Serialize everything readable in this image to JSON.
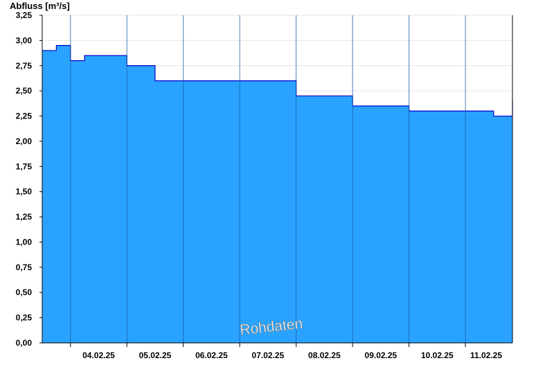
{
  "chart_data": {
    "type": "area",
    "ylabel": "Abfluss [m³/s]",
    "ylim": [
      0,
      3.25
    ],
    "y_ticks": [
      0,
      0.25,
      0.5,
      0.75,
      1.0,
      1.25,
      1.5,
      1.75,
      2.0,
      2.25,
      2.5,
      2.75,
      3.0,
      3.25
    ],
    "y_tick_labels": [
      "0,00",
      "0,25",
      "0,50",
      "0,75",
      "1,00",
      "1,25",
      "1,50",
      "1,75",
      "2,00",
      "2,25",
      "2,50",
      "2,75",
      "3,00",
      "3,25"
    ],
    "x_range": [
      "2025-02-03T12:00",
      "2025-02-11T20:00"
    ],
    "day_boundaries": [
      "2025-02-04T00:00",
      "2025-02-05T00:00",
      "2025-02-06T00:00",
      "2025-02-07T00:00",
      "2025-02-08T00:00",
      "2025-02-09T00:00",
      "2025-02-10T00:00",
      "2025-02-11T00:00"
    ],
    "x_tick_labels": [
      "04.02.25",
      "05.02.25",
      "06.02.25",
      "07.02.25",
      "08.02.25",
      "09.02.25",
      "10.02.25",
      "11.02.25"
    ],
    "grid": true,
    "series": [
      {
        "values": [
          {
            "x": "2025-02-03T12:00",
            "y": 2.9
          },
          {
            "x": "2025-02-03T18:00",
            "y": 2.95
          },
          {
            "x": "2025-02-04T00:00",
            "y": 2.8
          },
          {
            "x": "2025-02-04T06:00",
            "y": 2.85
          },
          {
            "x": "2025-02-04T12:00",
            "y": 2.85
          },
          {
            "x": "2025-02-04T18:00",
            "y": 2.85
          },
          {
            "x": "2025-02-05T00:00",
            "y": 2.75
          },
          {
            "x": "2025-02-05T06:00",
            "y": 2.75
          },
          {
            "x": "2025-02-05T12:00",
            "y": 2.6
          },
          {
            "x": "2025-02-05T18:00",
            "y": 2.6
          },
          {
            "x": "2025-02-06T00:00",
            "y": 2.6
          },
          {
            "x": "2025-02-06T06:00",
            "y": 2.6
          },
          {
            "x": "2025-02-06T12:00",
            "y": 2.6
          },
          {
            "x": "2025-02-06T18:00",
            "y": 2.6
          },
          {
            "x": "2025-02-07T00:00",
            "y": 2.6
          },
          {
            "x": "2025-02-07T06:00",
            "y": 2.6
          },
          {
            "x": "2025-02-07T12:00",
            "y": 2.6
          },
          {
            "x": "2025-02-07T18:00",
            "y": 2.6
          },
          {
            "x": "2025-02-08T00:00",
            "y": 2.45
          },
          {
            "x": "2025-02-08T06:00",
            "y": 2.45
          },
          {
            "x": "2025-02-08T12:00",
            "y": 2.45
          },
          {
            "x": "2025-02-08T18:00",
            "y": 2.45
          },
          {
            "x": "2025-02-09T00:00",
            "y": 2.35
          },
          {
            "x": "2025-02-09T06:00",
            "y": 2.35
          },
          {
            "x": "2025-02-09T12:00",
            "y": 2.35
          },
          {
            "x": "2025-02-09T18:00",
            "y": 2.35
          },
          {
            "x": "2025-02-10T00:00",
            "y": 2.3
          },
          {
            "x": "2025-02-10T06:00",
            "y": 2.3
          },
          {
            "x": "2025-02-10T12:00",
            "y": 2.3
          },
          {
            "x": "2025-02-10T18:00",
            "y": 2.3
          },
          {
            "x": "2025-02-11T00:00",
            "y": 2.3
          },
          {
            "x": "2025-02-11T06:00",
            "y": 2.3
          },
          {
            "x": "2025-02-11T12:00",
            "y": 2.25
          },
          {
            "x": "2025-02-11T20:00",
            "y": 2.4
          }
        ]
      }
    ],
    "colors": {
      "fill": "#29a3ff",
      "line": "#0000cc",
      "grid": "#e4e4e4",
      "day_line": "#1a5fa8"
    },
    "annotation": "Rohdaten"
  }
}
